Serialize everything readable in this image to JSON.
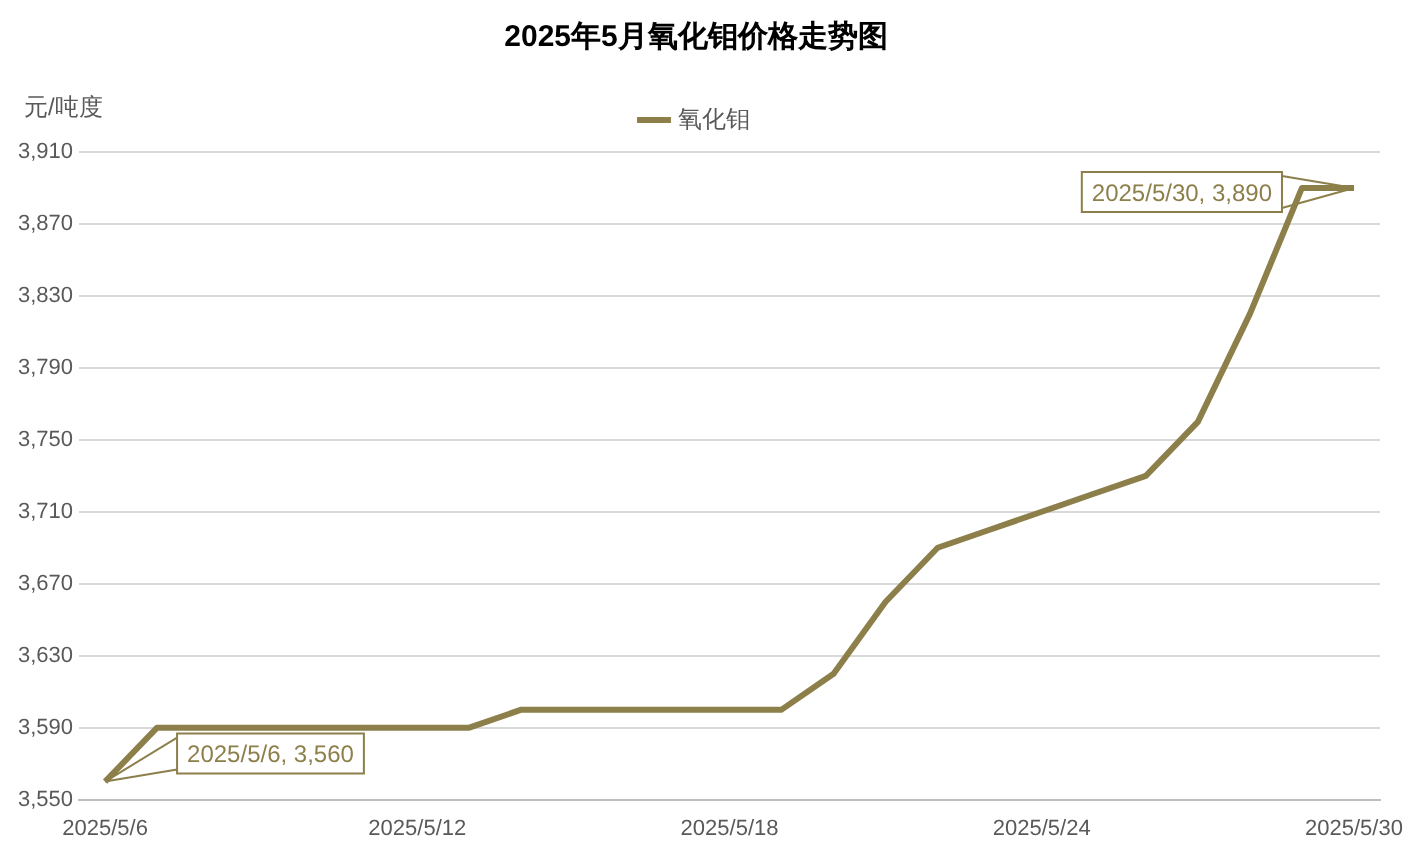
{
  "chart_data": {
    "type": "line",
    "title": "2025年5月氧化钼价格走势图",
    "ylabel": "元/吨度",
    "x": [
      "2025-05-06",
      "2025-05-07",
      "2025-05-08",
      "2025-05-09",
      "2025-05-10",
      "2025-05-11",
      "2025-05-12",
      "2025-05-13",
      "2025-05-14",
      "2025-05-15",
      "2025-05-16",
      "2025-05-17",
      "2025-05-18",
      "2025-05-19",
      "2025-05-20",
      "2025-05-21",
      "2025-05-22",
      "2025-05-23",
      "2025-05-24",
      "2025-05-25",
      "2025-05-26",
      "2025-05-27",
      "2025-05-28",
      "2025-05-29",
      "2025-05-30"
    ],
    "series": [
      {
        "name": "氧化钼",
        "color": "#8c7f4a",
        "values": [
          3560,
          3590,
          3590,
          3590,
          3590,
          3590,
          3590,
          3590,
          3600,
          3600,
          3600,
          3600,
          3600,
          3600,
          3620,
          3660,
          3690,
          3700,
          3710,
          3720,
          3730,
          3760,
          3820,
          3890,
          3890
        ]
      }
    ],
    "xlim": [
      "2025-05-05T12:00",
      "2025-05-30T12:00"
    ],
    "xticks": [
      {
        "value": "2025-05-06",
        "label": "2025/5/6"
      },
      {
        "value": "2025-05-12",
        "label": "2025/5/12"
      },
      {
        "value": "2025-05-18",
        "label": "2025/5/18"
      },
      {
        "value": "2025-05-24",
        "label": "2025/5/24"
      },
      {
        "value": "2025-05-30",
        "label": "2025/5/30"
      }
    ],
    "ylim": [
      3550,
      3910
    ],
    "yticks": [
      {
        "value": 3550,
        "label": "3,550"
      },
      {
        "value": 3590,
        "label": "3,590"
      },
      {
        "value": 3630,
        "label": "3,630"
      },
      {
        "value": 3670,
        "label": "3,670"
      },
      {
        "value": 3710,
        "label": "3,710"
      },
      {
        "value": 3750,
        "label": "3,750"
      },
      {
        "value": 3790,
        "label": "3,790"
      },
      {
        "value": 3830,
        "label": "3,830"
      },
      {
        "value": 3870,
        "label": "3,870"
      },
      {
        "value": 3910,
        "label": "3,910"
      }
    ],
    "grid": "y",
    "legend": "top",
    "marker": "none",
    "line_style": "solid",
    "annotations": [
      {
        "text": "2025/5/6, 3,560",
        "x": "2025-05-06",
        "y": 3560
      },
      {
        "text": "2025/5/30, 3,890",
        "x": "2025-05-30",
        "y": 3890
      }
    ]
  }
}
